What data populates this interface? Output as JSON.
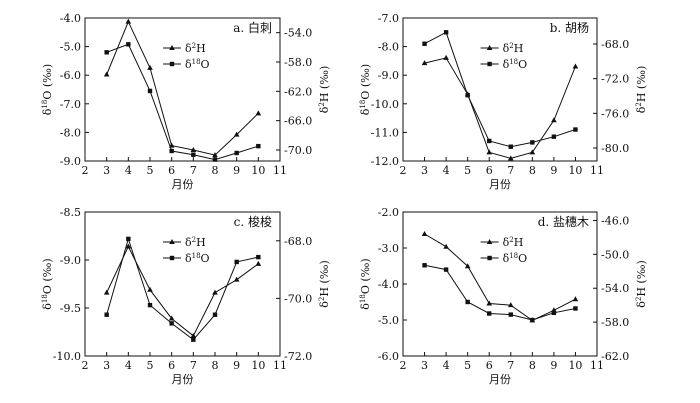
{
  "chart_data": [
    {
      "type": "line",
      "title": "a. 白刺",
      "xlabel": "月份",
      "ylabel_left": "δ18O (‰)",
      "ylabel_right": "δ2H (‰)",
      "x_ticks": [
        "2",
        "3",
        "4",
        "5",
        "6",
        "7",
        "8",
        "9",
        "10",
        "11"
      ],
      "xlim": [
        2,
        11
      ],
      "left_ticks": [
        "-4.0",
        "-5.0",
        "-6.0",
        "-7.0",
        "-8.0",
        "-9.0"
      ],
      "ylim_left": [
        -9.0,
        -4.0
      ],
      "right_ticks": [
        "-54.0",
        "-58.0",
        "-62.0",
        "-66.0",
        "-70.0"
      ],
      "ylim_right": [
        -71.5,
        -52.0
      ],
      "x": [
        3,
        4,
        5,
        6,
        7,
        8,
        9,
        10
      ],
      "legend": "top-right",
      "series": [
        {
          "name": "δ2H",
          "marker": "triangle",
          "axis": "right",
          "values": [
            -59.7,
            -52.5,
            -58.8,
            -69.4,
            -70.0,
            -70.7,
            -67.9,
            -65.0
          ]
        },
        {
          "name": "δ18O",
          "marker": "square",
          "axis": "left",
          "values": [
            -5.2,
            -4.92,
            -6.55,
            -8.65,
            -8.78,
            -8.95,
            -8.72,
            -8.48
          ]
        }
      ]
    },
    {
      "type": "line",
      "title": "b. 胡杨",
      "xlabel": "月份",
      "ylabel_left": "δ18O (‰)",
      "ylabel_right": "δ2H (‰)",
      "x_ticks": [
        "2",
        "3",
        "4",
        "5",
        "6",
        "7",
        "8",
        "9",
        "10",
        "11"
      ],
      "xlim": [
        2,
        11
      ],
      "left_ticks": [
        "-7.0",
        "-8.0",
        "-9.0",
        "-10.0",
        "-11.0",
        "-12.0"
      ],
      "ylim_left": [
        -12.0,
        -7.0
      ],
      "right_ticks": [
        "-68.0",
        "-72.0",
        "-76.0",
        "-80.0"
      ],
      "ylim_right": [
        -81.5,
        -65.0
      ],
      "x": [
        3,
        4,
        5,
        6,
        7,
        8,
        9,
        10
      ],
      "legend": "top-right",
      "series": [
        {
          "name": "δ2H",
          "marker": "triangle",
          "axis": "right",
          "values": [
            -70.2,
            -69.6,
            -73.8,
            -80.5,
            -81.2,
            -80.5,
            -76.8,
            -70.6
          ]
        },
        {
          "name": "δ18O",
          "marker": "square",
          "axis": "left",
          "values": [
            -7.9,
            -7.5,
            -9.7,
            -11.3,
            -11.5,
            -11.35,
            -11.15,
            -10.9
          ]
        }
      ]
    },
    {
      "type": "line",
      "title": "c. 梭梭",
      "xlabel": "月份",
      "ylabel_left": "δ18O (‰)",
      "ylabel_right": "δ2H (‰)",
      "x_ticks": [
        "2",
        "3",
        "4",
        "5",
        "6",
        "7",
        "8",
        "9",
        "10",
        "11"
      ],
      "xlim": [
        2,
        11
      ],
      "left_ticks": [
        "-8.5",
        "-9.0",
        "-9.5",
        "-10.0"
      ],
      "ylim_left": [
        -10.0,
        -8.5
      ],
      "right_ticks": [
        "-68.0",
        "-70.0",
        "-72.0"
      ],
      "ylim_right": [
        -72.0,
        -67.0
      ],
      "x": [
        3,
        4,
        5,
        6,
        7,
        8,
        9,
        10
      ],
      "legend": "top-right",
      "series": [
        {
          "name": "δ2H",
          "marker": "triangle",
          "axis": "right",
          "values": [
            -69.8,
            -68.2,
            -69.7,
            -70.7,
            -71.3,
            -69.8,
            -69.35,
            -68.8
          ]
        },
        {
          "name": "δ18O",
          "marker": "square",
          "axis": "left",
          "values": [
            -9.57,
            -8.78,
            -9.47,
            -9.66,
            -9.83,
            -9.57,
            -9.02,
            -8.97
          ]
        }
      ]
    },
    {
      "type": "line",
      "title": "d. 盐穗木",
      "xlabel": "月份",
      "ylabel_left": "δ18O (‰)",
      "ylabel_right": "δ2H (‰)",
      "x_ticks": [
        "2",
        "3",
        "4",
        "5",
        "6",
        "7",
        "8",
        "9",
        "10",
        "11"
      ],
      "xlim": [
        2,
        11
      ],
      "left_ticks": [
        "-2.0",
        "-3.0",
        "-4.0",
        "-5.0",
        "-6.0"
      ],
      "ylim_left": [
        -6.0,
        -2.0
      ],
      "right_ticks": [
        "-46.0",
        "-50.0",
        "-54.0",
        "-58.0",
        "-62.0"
      ],
      "ylim_right": [
        -62.0,
        -45.0
      ],
      "x": [
        3,
        4,
        5,
        6,
        7,
        8,
        9,
        10
      ],
      "legend": "top-right",
      "series": [
        {
          "name": "δ2H",
          "marker": "triangle",
          "axis": "right",
          "values": [
            -47.6,
            -49.1,
            -51.4,
            -55.8,
            -56.0,
            -57.8,
            -56.6,
            -55.3
          ]
        },
        {
          "name": "δ18O",
          "marker": "square",
          "axis": "left",
          "values": [
            -3.48,
            -3.6,
            -4.5,
            -4.82,
            -4.85,
            -5.0,
            -4.8,
            -4.68
          ]
        }
      ]
    }
  ]
}
